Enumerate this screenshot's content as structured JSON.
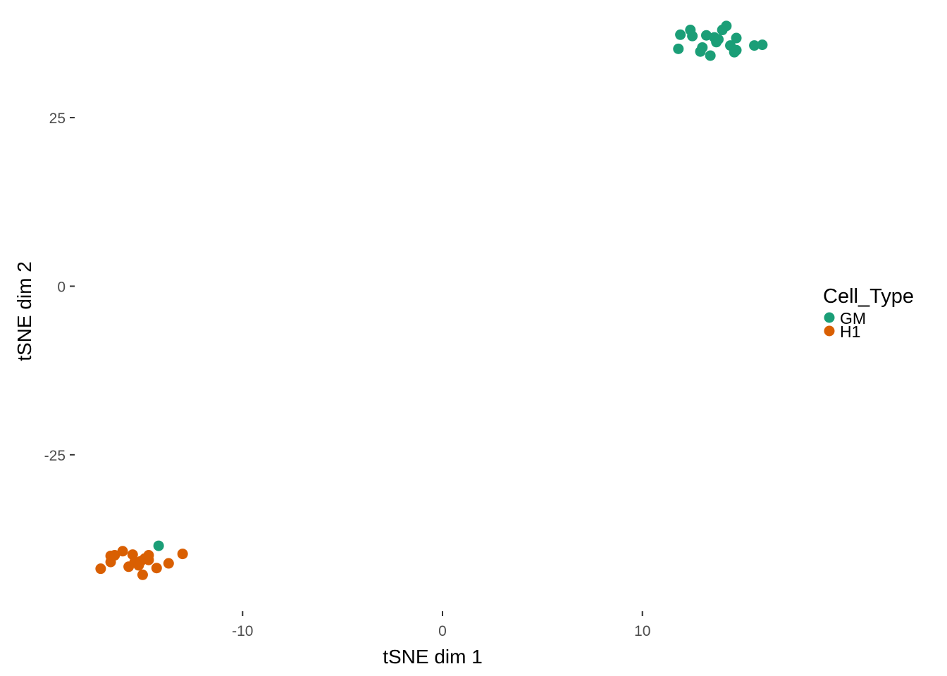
{
  "chart_data": {
    "type": "scatter",
    "title": "",
    "xlabel": "tSNE dim 1",
    "ylabel": "tSNE dim 2",
    "xlim": [
      -18.4,
      18.4
    ],
    "ylim": [
      -48.2,
      41.4
    ],
    "x_ticks": [
      {
        "value": -10,
        "label": "-10"
      },
      {
        "value": 0,
        "label": "0"
      },
      {
        "value": 10,
        "label": "10"
      }
    ],
    "y_ticks": [
      {
        "value": 25,
        "label": "25"
      },
      {
        "value": 0,
        "label": "0"
      },
      {
        "value": -25,
        "label": "-25"
      }
    ],
    "grid": false,
    "legend": {
      "title": "Cell_Type",
      "placement": "right",
      "entries": [
        {
          "label": "GM",
          "color": "#1b9e77"
        },
        {
          "label": "H1",
          "color": "#d95f02"
        }
      ]
    },
    "series": [
      {
        "name": "GM",
        "color": "#1b9e77",
        "points": [
          [
            11.8,
            35.2
          ],
          [
            11.9,
            37.3
          ],
          [
            12.4,
            38.0
          ],
          [
            12.5,
            37.1
          ],
          [
            12.9,
            34.8
          ],
          [
            13.0,
            35.4
          ],
          [
            13.2,
            37.2
          ],
          [
            13.4,
            34.2
          ],
          [
            13.6,
            36.9
          ],
          [
            13.7,
            36.2
          ],
          [
            13.8,
            36.6
          ],
          [
            14.0,
            38.0
          ],
          [
            14.2,
            38.6
          ],
          [
            14.4,
            35.7
          ],
          [
            14.6,
            34.7
          ],
          [
            14.7,
            35.0
          ],
          [
            14.7,
            36.8
          ],
          [
            15.6,
            35.7
          ],
          [
            16.0,
            35.8
          ],
          [
            -14.2,
            -38.5
          ]
        ]
      },
      {
        "name": "H1",
        "color": "#d95f02",
        "points": [
          [
            -17.1,
            -41.9
          ],
          [
            -16.6,
            -40.9
          ],
          [
            -16.6,
            -40.0
          ],
          [
            -16.4,
            -39.9
          ],
          [
            -16.0,
            -39.3
          ],
          [
            -15.7,
            -41.6
          ],
          [
            -15.5,
            -39.8
          ],
          [
            -15.4,
            -40.9
          ],
          [
            -15.2,
            -41.4
          ],
          [
            -15.1,
            -40.8
          ],
          [
            -15.0,
            -42.8
          ],
          [
            -14.9,
            -40.4
          ],
          [
            -14.7,
            -40.6
          ],
          [
            -14.7,
            -39.9
          ],
          [
            -14.3,
            -41.8
          ],
          [
            -13.7,
            -41.1
          ],
          [
            -13.0,
            -39.7
          ]
        ]
      }
    ]
  }
}
